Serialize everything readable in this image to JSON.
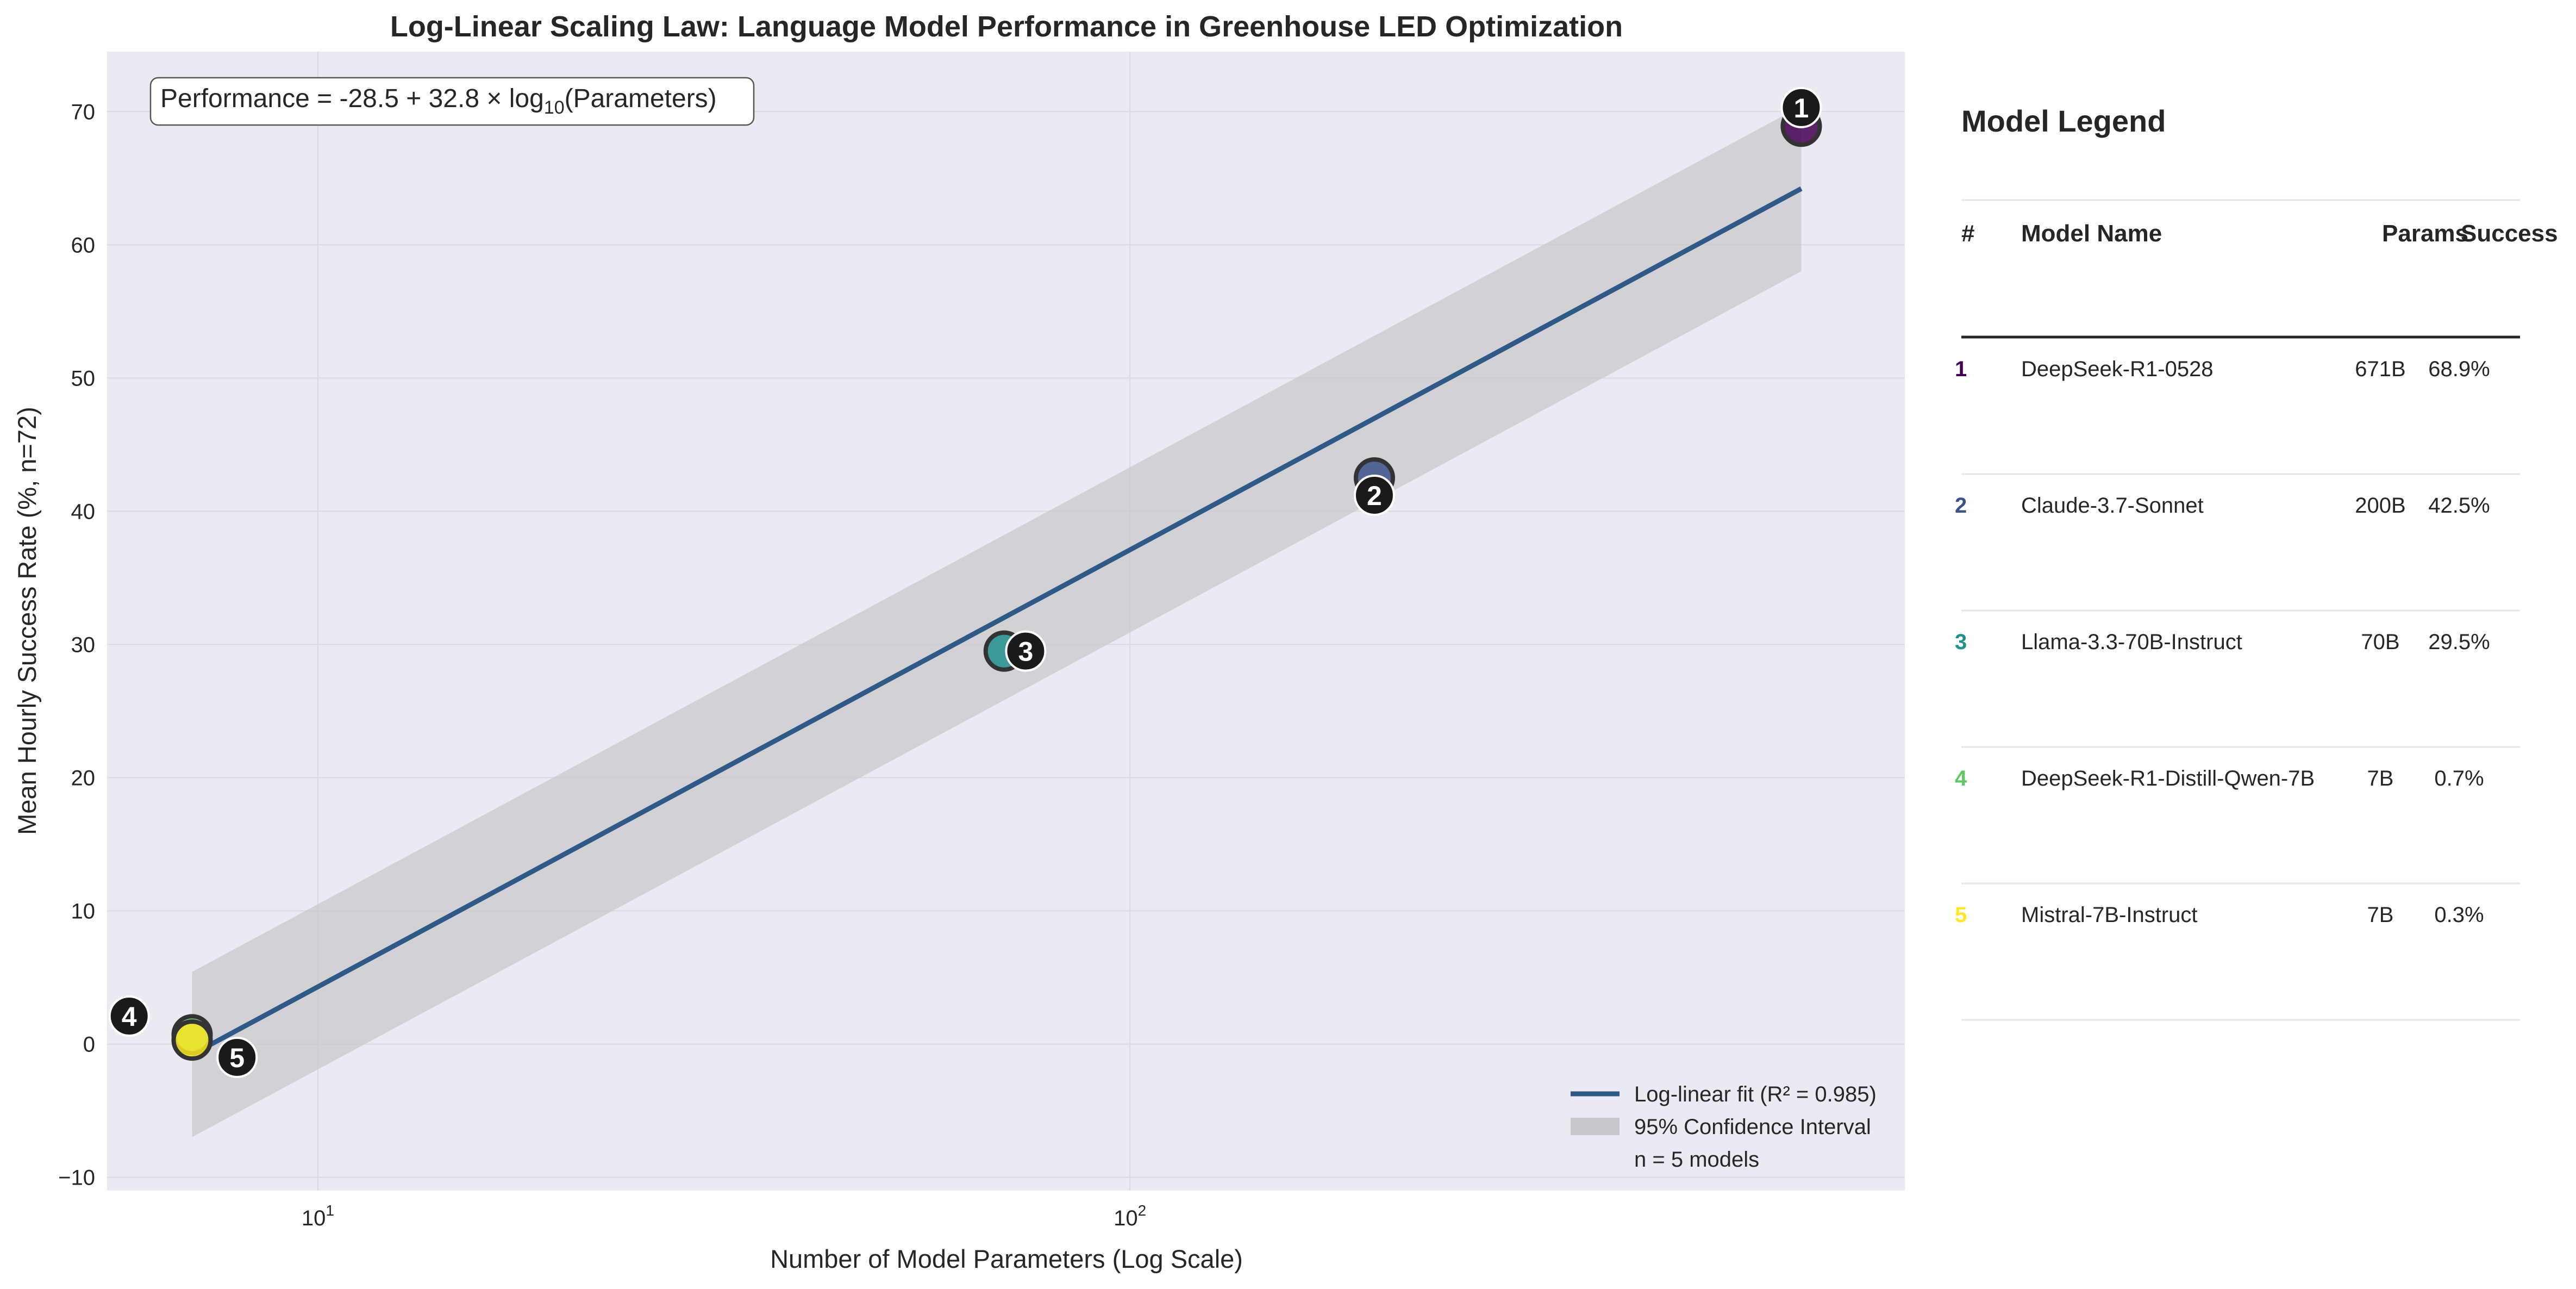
{
  "chart_data": {
    "type": "scatter",
    "title": "Log-Linear Scaling Law: Language Model Performance in Greenhouse LED Optimization",
    "xlabel": "Number of Model Parameters (Log Scale)",
    "ylabel": "Mean Hourly Success Rate (%, n=72)",
    "x_scale": "log",
    "xlim": [
      5.5,
      900
    ],
    "ylim": [
      -11,
      74.5
    ],
    "x_ticks": [
      {
        "value": 10,
        "base": "10",
        "exp": "1"
      },
      {
        "value": 100,
        "base": "10",
        "exp": "2"
      }
    ],
    "y_ticks": [
      -10,
      0,
      10,
      20,
      30,
      40,
      50,
      60,
      70
    ],
    "y_tick_labels": [
      "−10",
      "0",
      "10",
      "20",
      "30",
      "40",
      "50",
      "60",
      "70"
    ],
    "grid": true,
    "points": [
      {
        "id": "1",
        "model": "DeepSeek-R1-0528",
        "params": 671,
        "success": 68.9,
        "color": "#440154",
        "label_dx": 0,
        "label_dy": 1.4
      },
      {
        "id": "2",
        "model": "Claude-3.7-Sonnet",
        "params": 200,
        "success": 42.5,
        "color": "#3b528b",
        "label_dx": 0,
        "label_dy": -1.3
      },
      {
        "id": "3",
        "model": "Llama-3.3-70B-Instruct",
        "params": 70,
        "success": 29.5,
        "color": "#21918c",
        "label_dx": 0.012,
        "label_dy": 0
      },
      {
        "id": "4",
        "model": "DeepSeek-R1-Distill-Qwen-7B",
        "params": 7,
        "success": 0.7,
        "color": "#5ec962",
        "label_dx": -0.035,
        "label_dy": 1.4
      },
      {
        "id": "5",
        "model": "Mistral-7B-Instruct",
        "params": 7,
        "success": 0.3,
        "color": "#fde725",
        "label_dx": 0.025,
        "label_dy": -1.3
      }
    ],
    "fit": {
      "intercept": -28.5,
      "slope": 32.8,
      "x_range": [
        7,
        671
      ],
      "ci_halfwidth": 6.2,
      "color": "#2f5a87",
      "band_color": "#c8c8cc",
      "equation_prefix": "Performance = -28.5 + 32.8 × log",
      "equation_sub": "10",
      "equation_suffix": "(Parameters)"
    },
    "legend": {
      "position": "lower-right",
      "entries": [
        "Log-linear fit (R² = 0.985)",
        "95% Confidence Interval",
        "n = 5 models"
      ]
    }
  },
  "panel": {
    "title": "Model Legend",
    "headers": {
      "idx": "#",
      "name": "Model Name",
      "params": "Params",
      "success": "Success"
    },
    "rows": [
      {
        "idx": "1",
        "name": "DeepSeek-R1-0528",
        "params": "671B",
        "success": "68.9%",
        "color": "#440154"
      },
      {
        "idx": "2",
        "name": "Claude-3.7-Sonnet",
        "params": "200B",
        "success": "42.5%",
        "color": "#3b528b"
      },
      {
        "idx": "3",
        "name": "Llama-3.3-70B-Instruct",
        "params": "70B",
        "success": "29.5%",
        "color": "#21918c"
      },
      {
        "idx": "4",
        "name": "DeepSeek-R1-Distill-Qwen-7B",
        "params": "7B",
        "success": "0.7%",
        "color": "#5ec962"
      },
      {
        "idx": "5",
        "name": "Mistral-7B-Instruct",
        "params": "7B",
        "success": "0.3%",
        "color": "#fde725"
      }
    ]
  },
  "colors": {
    "plot_background": "#eaeaf2",
    "grid": "#d9d9e0",
    "marker_label_bg": "#1a1a1a"
  }
}
